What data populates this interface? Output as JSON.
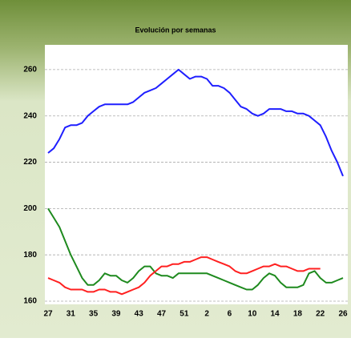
{
  "chart_data": {
    "type": "line",
    "title": "Evolución por semanas",
    "categories": [
      27,
      null,
      null,
      null,
      31,
      null,
      null,
      null,
      35,
      null,
      null,
      null,
      39,
      null,
      null,
      null,
      43,
      null,
      null,
      null,
      47,
      null,
      null,
      null,
      51,
      null,
      null,
      null,
      2,
      null,
      null,
      null,
      6,
      null,
      null,
      null,
      10,
      null,
      null,
      null,
      14,
      null,
      null,
      null,
      18,
      null,
      null,
      null,
      22,
      null,
      null,
      null,
      26
    ],
    "series": [
      {
        "color": "#1f1fff",
        "values": [
          224,
          226,
          230,
          235,
          236,
          236,
          237,
          240,
          242,
          244,
          245,
          245,
          245,
          245,
          245,
          246,
          248,
          250,
          251,
          252,
          254,
          256,
          258,
          260,
          258,
          256,
          257,
          257,
          256,
          253,
          253,
          252,
          250,
          247,
          244,
          243,
          241,
          240,
          241,
          243,
          243,
          243,
          242,
          242,
          241,
          241,
          240,
          238,
          236,
          231,
          225,
          220,
          214
        ]
      },
      {
        "color": "#1e8a1e",
        "values": [
          200,
          196,
          192,
          186,
          180,
          175,
          170,
          167,
          167,
          169,
          172,
          171,
          171,
          169,
          168,
          170,
          173,
          175,
          175,
          172,
          171,
          171,
          170,
          172,
          172,
          172,
          172,
          172,
          172,
          171,
          170,
          169,
          168,
          167,
          166,
          165,
          165,
          167,
          170,
          172,
          171,
          168,
          166,
          166,
          166,
          167,
          172,
          173,
          170,
          168,
          168,
          169,
          170
        ]
      },
      {
        "color": "#ff2020",
        "values": [
          170,
          169,
          168,
          166,
          165,
          165,
          165,
          164,
          164,
          165,
          165,
          164,
          164,
          163,
          164,
          165,
          166,
          168,
          171,
          173,
          175,
          175,
          176,
          176,
          177,
          177,
          178,
          179,
          179,
          178,
          177,
          176,
          175,
          173,
          172,
          172,
          173,
          174,
          175,
          175,
          176,
          175,
          175,
          174,
          173,
          173,
          174,
          174,
          174,
          null,
          null,
          null,
          null
        ]
      }
    ],
    "ylim": [
      160,
      270
    ],
    "yticks": [
      160,
      180,
      200,
      220,
      240,
      260
    ],
    "grid": true
  }
}
